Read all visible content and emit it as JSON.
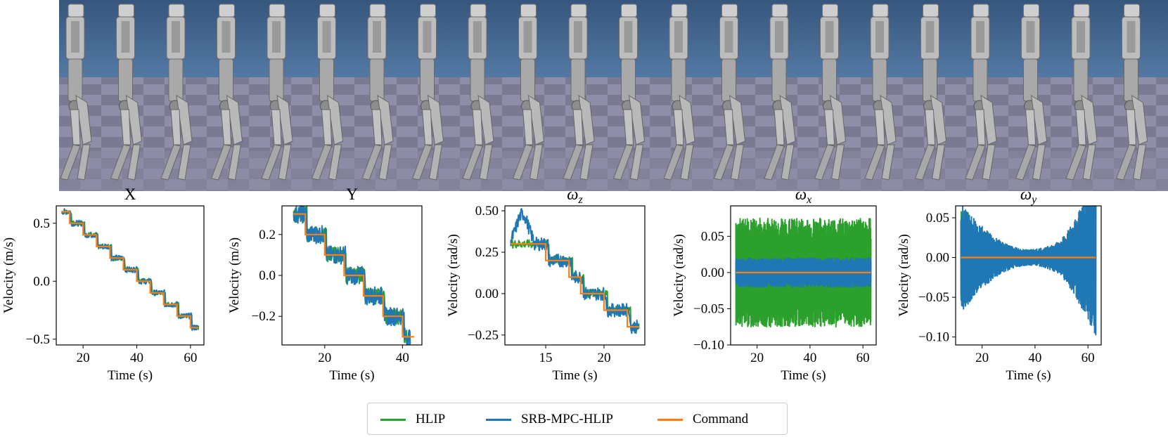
{
  "colors": {
    "hlip": "#2ca02c",
    "srb": "#1f77b4",
    "command": "#ff7f0e"
  },
  "simulation": {
    "description_icon": "robot-walking-frames",
    "frame_count": 22
  },
  "legend": {
    "hlip": "HLIP",
    "srb": "SRB-MPC-HLIP",
    "command": "Command"
  },
  "chart_data": [
    {
      "type": "line",
      "title": "X",
      "xlabel": "Time  (s)",
      "ylabel": "Velocity  (m/s)",
      "xlim": [
        10,
        65
      ],
      "ylim": [
        -0.55,
        0.65
      ],
      "xticks": [
        20,
        40,
        60
      ],
      "xtick_labels": [
        "20",
        "40",
        "60"
      ],
      "yticks": [
        0.5,
        0.0,
        -0.5
      ],
      "ytick_labels": [
        "0.5",
        "0.0",
        "−0.5"
      ],
      "command": {
        "x": [
          12,
          15,
          15,
          20,
          20,
          25,
          25,
          30,
          30,
          35,
          35,
          40,
          40,
          45,
          45,
          50,
          50,
          55,
          55,
          60,
          60,
          63
        ],
        "y": [
          0.6,
          0.6,
          0.5,
          0.5,
          0.4,
          0.4,
          0.3,
          0.3,
          0.2,
          0.2,
          0.1,
          0.1,
          0.0,
          0.0,
          -0.1,
          -0.1,
          -0.2,
          -0.2,
          -0.3,
          -0.3,
          -0.4,
          -0.4
        ]
      },
      "series": [
        {
          "name": "HLIP",
          "x_range": [
            12,
            63
          ],
          "noise": 0.02,
          "lag": 0.6
        },
        {
          "name": "SRB-MPC-HLIP",
          "x_range": [
            12,
            63
          ],
          "noise": 0.025,
          "lag": 0.4
        }
      ]
    },
    {
      "type": "line",
      "title": "Y",
      "xlabel": "Time  (s)",
      "ylabel": "Velocity  (m/s)",
      "xlim": [
        9,
        45
      ],
      "ylim": [
        -0.34,
        0.34
      ],
      "xticks": [
        20,
        40
      ],
      "xtick_labels": [
        "20",
        "40"
      ],
      "yticks": [
        0.2,
        0.0,
        -0.2
      ],
      "ytick_labels": [
        "0.2",
        "0.0",
        "−0.2"
      ],
      "command": {
        "x": [
          12,
          15,
          15,
          20,
          20,
          25,
          25,
          30,
          30,
          35,
          35,
          40,
          40,
          43
        ],
        "y": [
          0.3,
          0.3,
          0.2,
          0.2,
          0.1,
          0.1,
          0.0,
          0.0,
          -0.1,
          -0.1,
          -0.2,
          -0.2,
          -0.3,
          -0.3
        ]
      },
      "series": [
        {
          "name": "HLIP",
          "x_range": [
            12,
            42
          ],
          "noise": 0.04,
          "lag": 0.5
        },
        {
          "name": "SRB-MPC-HLIP",
          "x_range": [
            12,
            42
          ],
          "noise": 0.045,
          "lag": 0.4
        }
      ]
    },
    {
      "type": "line",
      "title": "ωz",
      "title_main": "ω",
      "title_sub": "z",
      "xlabel": "Time  (s)",
      "ylabel": "Velocity  (rad/s)",
      "xlim": [
        11.5,
        23.5
      ],
      "ylim": [
        -0.31,
        0.53
      ],
      "xticks": [
        15,
        20
      ],
      "xtick_labels": [
        "15",
        "20"
      ],
      "yticks": [
        0.5,
        0.25,
        0.0,
        -0.25
      ],
      "ytick_labels": [
        "0.50",
        "0.25",
        "0.00",
        "−0.25"
      ],
      "command": {
        "x": [
          12,
          13,
          13,
          15,
          15,
          16,
          16,
          17,
          17,
          18,
          18,
          19,
          19,
          20,
          20,
          21,
          21,
          22,
          22,
          23
        ],
        "y": [
          0.3,
          0.3,
          0.3,
          0.3,
          0.2,
          0.2,
          0.2,
          0.2,
          0.1,
          0.1,
          0.0,
          0.0,
          0.0,
          0.0,
          -0.1,
          -0.1,
          -0.1,
          -0.1,
          -0.2,
          -0.2
        ]
      },
      "series": [
        {
          "name": "HLIP",
          "x_range": [
            12,
            23
          ],
          "noise": 0.025,
          "lag": 0.3
        },
        {
          "name": "SRB-MPC-HLIP",
          "x_range": [
            12,
            23
          ],
          "noise": 0.04,
          "lag": 0.2,
          "overshoot": 0.18
        }
      ]
    },
    {
      "type": "line",
      "title": "ωx",
      "title_main": "ω",
      "title_sub": "x",
      "xlabel": "Time  (s)",
      "ylabel": "Velocity  (rad/s)",
      "xlim": [
        10,
        65
      ],
      "ylim": [
        -0.1,
        0.092
      ],
      "xticks": [
        20,
        40,
        60
      ],
      "xtick_labels": [
        "20",
        "40",
        "60"
      ],
      "yticks": [
        0.05,
        0.0,
        -0.05,
        -0.1
      ],
      "ytick_labels": [
        "0.05",
        "0.00",
        "−0.05",
        "−0.10"
      ],
      "command": {
        "x": [
          12,
          63
        ],
        "y": [
          0.0,
          0.0
        ]
      },
      "series": [
        {
          "name": "HLIP",
          "x_range": [
            12,
            63
          ],
          "band": 0.075
        },
        {
          "name": "SRB-MPC-HLIP",
          "x_range": [
            12,
            63
          ],
          "band": 0.02
        }
      ]
    },
    {
      "type": "line",
      "title": "ωy",
      "title_main": "ω",
      "title_sub": "y",
      "xlabel": "Time  (s)",
      "ylabel": "Velocity  (rad/s)",
      "xlim": [
        10,
        65
      ],
      "ylim": [
        -0.11,
        0.065
      ],
      "xticks": [
        20,
        40,
        60
      ],
      "xtick_labels": [
        "20",
        "40",
        "60"
      ],
      "yticks": [
        0.05,
        0.0,
        -0.05,
        -0.1
      ],
      "ytick_labels": [
        "0.05",
        "0.00",
        "−0.05",
        "−0.10"
      ],
      "command": {
        "x": [
          12,
          63
        ],
        "y": [
          0.0,
          0.0
        ]
      },
      "series": [
        {
          "name": "HLIP",
          "x_range": [
            12,
            63
          ],
          "band": 0.03
        },
        {
          "name": "SRB-MPC-HLIP",
          "x_range": [
            12,
            63
          ],
          "band": 0.045
        }
      ]
    }
  ]
}
